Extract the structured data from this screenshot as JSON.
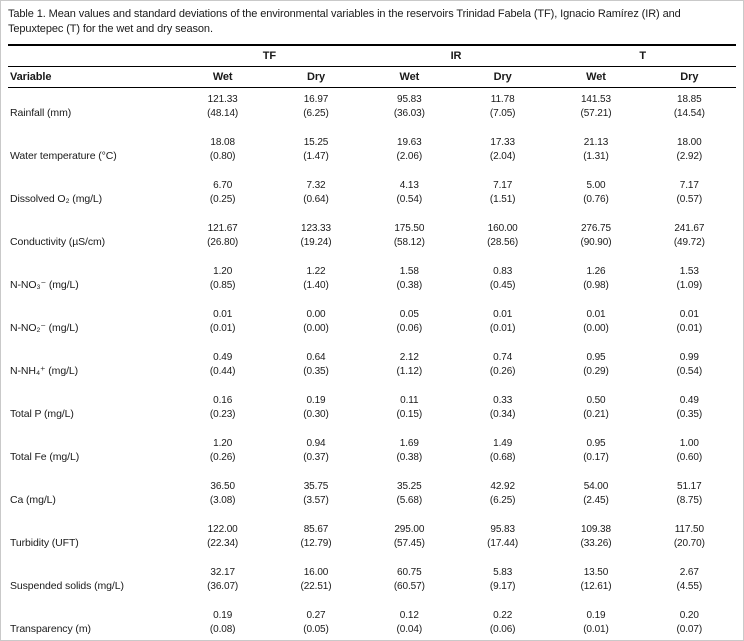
{
  "caption": "Table 1. Mean values and standard deviations of the environmental variables in the reservoirs Trinidad Fabela (TF), Ignacio Ramírez (IR) and Tepuxtepec (T) for the wet and dry season.",
  "table": {
    "group_headers": [
      "TF",
      "IR",
      "T"
    ],
    "column_headers": [
      "Variable",
      "Wet",
      "Dry",
      "Wet",
      "Dry",
      "Wet",
      "Dry"
    ],
    "rows": [
      {
        "variable": "Rainfall (mm)",
        "means": [
          "121.33",
          "16.97",
          "95.83",
          "11.78",
          "141.53",
          "18.85"
        ],
        "sds": [
          "(48.14)",
          "(6.25)",
          "(36.03)",
          "(7.05)",
          "(57.21)",
          "(14.54)"
        ]
      },
      {
        "variable": "Water temperature (°C)",
        "means": [
          "18.08",
          "15.25",
          "19.63",
          "17.33",
          "21.13",
          "18.00"
        ],
        "sds": [
          "(0.80)",
          "(1.47)",
          "(2.06)",
          "(2.04)",
          "(1.31)",
          "(2.92)"
        ]
      },
      {
        "variable": "Dissolved O₂ (mg/L)",
        "means": [
          "6.70",
          "7.32",
          "4.13",
          "7.17",
          "5.00",
          "7.17"
        ],
        "sds": [
          "(0.25)",
          "(0.64)",
          "(0.54)",
          "(1.51)",
          "(0.76)",
          "(0.57)"
        ]
      },
      {
        "variable": "Conductivity (µS/cm)",
        "means": [
          "121.67",
          "123.33",
          "175.50",
          "160.00",
          "276.75",
          "241.67"
        ],
        "sds": [
          "(26.80)",
          "(19.24)",
          "(58.12)",
          "(28.56)",
          "(90.90)",
          "(49.72)"
        ]
      },
      {
        "variable": "N-NO₃⁻ (mg/L)",
        "means": [
          "1.20",
          "1.22",
          "1.58",
          "0.83",
          "1.26",
          "1.53"
        ],
        "sds": [
          "(0.85)",
          "(1.40)",
          "(0.38)",
          "(0.45)",
          "(0.98)",
          "(1.09)"
        ]
      },
      {
        "variable": "N-NO₂⁻ (mg/L)",
        "means": [
          "0.01",
          "0.00",
          "0.05",
          "0.01",
          "0.01",
          "0.01"
        ],
        "sds": [
          "(0.01)",
          "(0.00)",
          "(0.06)",
          "(0.01)",
          "(0.00)",
          "(0.01)"
        ]
      },
      {
        "variable": "N-NH₄⁺ (mg/L)",
        "means": [
          "0.49",
          "0.64",
          "2.12",
          "0.74",
          "0.95",
          "0.99"
        ],
        "sds": [
          "(0.44)",
          "(0.35)",
          "(1.12)",
          "(0.26)",
          "(0.29)",
          "(0.54)"
        ]
      },
      {
        "variable": "Total P (mg/L)",
        "means": [
          "0.16",
          "0.19",
          "0.11",
          "0.33",
          "0.50",
          "0.49"
        ],
        "sds": [
          "(0.23)",
          "(0.30)",
          "(0.15)",
          "(0.34)",
          "(0.21)",
          "(0.35)"
        ]
      },
      {
        "variable": "Total Fe (mg/L)",
        "means": [
          "1.20",
          "0.94",
          "1.69",
          "1.49",
          "0.95",
          "1.00"
        ],
        "sds": [
          "(0.26)",
          "(0.37)",
          "(0.38)",
          "(0.68)",
          "(0.17)",
          "(0.60)"
        ]
      },
      {
        "variable": "Ca (mg/L)",
        "means": [
          "36.50",
          "35.75",
          "35.25",
          "42.92",
          "54.00",
          "51.17"
        ],
        "sds": [
          "(3.08)",
          "(3.57)",
          "(5.68)",
          "(6.25)",
          "(2.45)",
          "(8.75)"
        ]
      },
      {
        "variable": "Turbidity (UFT)",
        "means": [
          "122.00",
          "85.67",
          "295.00",
          "95.83",
          "109.38",
          "117.50"
        ],
        "sds": [
          "(22.34)",
          "(12.79)",
          "(57.45)",
          "(17.44)",
          "(33.26)",
          "(20.70)"
        ]
      },
      {
        "variable": "Suspended solids (mg/L)",
        "means": [
          "32.17",
          "16.00",
          "60.75",
          "5.83",
          "13.50",
          "2.67"
        ],
        "sds": [
          "(36.07)",
          "(22.51)",
          "(60.57)",
          "(9.17)",
          "(12.61)",
          "(4.55)"
        ]
      },
      {
        "variable": "Transparency (m)",
        "means": [
          "0.19",
          "0.27",
          "0.12",
          "0.22",
          "0.19",
          "0.20"
        ],
        "sds": [
          "(0.08)",
          "(0.05)",
          "(0.04)",
          "(0.06)",
          "(0.01)",
          "(0.07)"
        ]
      }
    ]
  }
}
